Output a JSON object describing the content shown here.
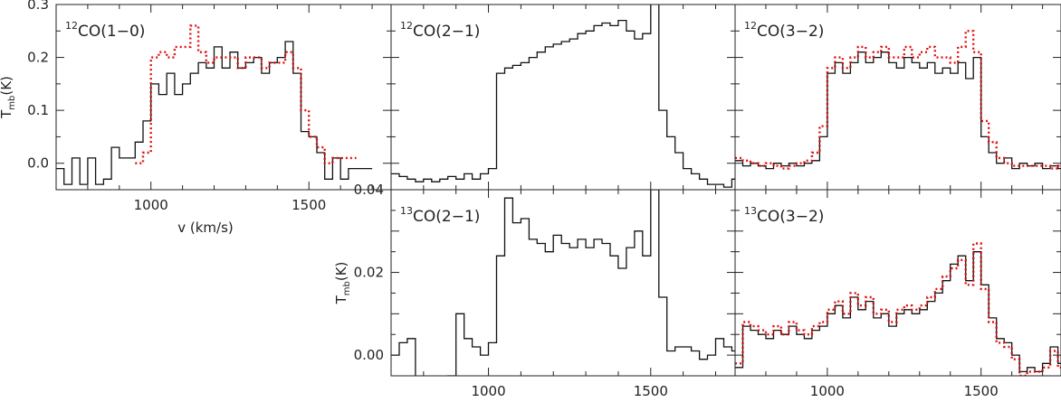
{
  "chart_data": [
    {
      "id": "p1",
      "type": "line",
      "step": true,
      "label_iso": "12",
      "label_rest": "CO(1−0)",
      "ylabel_main": "T",
      "ylabel_sub": "mb",
      "ylabel_unit": "(K)",
      "xlabel": "v (km/s)",
      "xlim": [
        700,
        1760
      ],
      "ylim": [
        -0.05,
        0.3
      ],
      "xticks": [
        {
          "v": 1000,
          "label": "1000"
        },
        {
          "v": 1500,
          "label": "1500"
        }
      ],
      "yticks": [
        {
          "v": 0.0,
          "label": "0.0"
        },
        {
          "v": 0.1,
          "label": "0.1"
        },
        {
          "v": 0.2,
          "label": "0.2"
        },
        {
          "v": 0.3,
          "label": "0.3"
        }
      ],
      "series": [
        {
          "style": "solid",
          "x": [
            700,
            725,
            750,
            775,
            800,
            825,
            850,
            875,
            900,
            925,
            950,
            975,
            1000,
            1025,
            1050,
            1075,
            1100,
            1125,
            1150,
            1175,
            1200,
            1225,
            1250,
            1275,
            1300,
            1325,
            1350,
            1375,
            1400,
            1425,
            1450,
            1475,
            1500,
            1525,
            1550,
            1575,
            1600,
            1625,
            1650,
            1675
          ],
          "y": [
            -0.01,
            -0.04,
            0.01,
            -0.04,
            0.01,
            -0.04,
            -0.03,
            0.03,
            0.01,
            0.01,
            0.04,
            0.08,
            0.15,
            0.13,
            0.17,
            0.13,
            0.15,
            0.17,
            0.19,
            0.18,
            0.22,
            0.18,
            0.21,
            0.18,
            0.19,
            0.2,
            0.17,
            0.19,
            0.2,
            0.23,
            0.17,
            0.06,
            0.05,
            0.02,
            -0.03,
            0.01,
            -0.03,
            -0.01,
            -0.01,
            -0.01
          ]
        },
        {
          "style": "dotted",
          "x": [
            950,
            975,
            1000,
            1025,
            1050,
            1075,
            1100,
            1125,
            1150,
            1175,
            1200,
            1225,
            1250,
            1275,
            1300,
            1325,
            1350,
            1375,
            1400,
            1425,
            1450,
            1475,
            1500,
            1525,
            1550,
            1575,
            1600,
            1625
          ],
          "y": [
            0.0,
            0.02,
            0.2,
            0.21,
            0.2,
            0.22,
            0.22,
            0.26,
            0.21,
            0.19,
            0.2,
            0.2,
            0.2,
            0.18,
            0.2,
            0.2,
            0.18,
            0.19,
            0.19,
            0.21,
            0.18,
            0.1,
            0.05,
            0.03,
            0.0,
            0.01,
            0.01,
            0.01
          ]
        }
      ]
    },
    {
      "id": "p2",
      "type": "line",
      "step": true,
      "label_iso": "12",
      "label_rest": "CO(2−1)",
      "xlim": [
        700,
        1760
      ],
      "ylim": [
        -0.05,
        0.3
      ],
      "series": [
        {
          "style": "solid",
          "x": [
            700,
            725,
            750,
            775,
            800,
            825,
            850,
            875,
            900,
            925,
            950,
            975,
            1000,
            1025,
            1050,
            1075,
            1100,
            1125,
            1150,
            1175,
            1200,
            1225,
            1250,
            1275,
            1300,
            1325,
            1350,
            1375,
            1400,
            1425,
            1450,
            1475,
            1500,
            1525,
            1550,
            1575,
            1600,
            1625,
            1650,
            1675,
            1700,
            1725,
            1750
          ],
          "y": [
            -0.02,
            -0.025,
            -0.03,
            -0.035,
            -0.03,
            -0.035,
            -0.03,
            -0.025,
            -0.03,
            -0.02,
            -0.03,
            -0.02,
            -0.01,
            0.17,
            0.18,
            0.185,
            0.19,
            0.2,
            0.21,
            0.22,
            0.225,
            0.23,
            0.235,
            0.245,
            0.25,
            0.26,
            0.265,
            0.26,
            0.27,
            0.25,
            0.235,
            0.245,
            0.35,
            0.1,
            0.05,
            0.02,
            -0.01,
            -0.02,
            -0.03,
            -0.04,
            -0.04,
            -0.045,
            -0.03
          ]
        }
      ]
    },
    {
      "id": "p3",
      "type": "line",
      "step": true,
      "label_iso": "12",
      "label_rest": "CO(3−2)",
      "xlim": [
        700,
        1760
      ],
      "ylim": [
        -0.05,
        0.3
      ],
      "series": [
        {
          "style": "solid",
          "x": [
            700,
            725,
            750,
            775,
            800,
            825,
            850,
            875,
            900,
            925,
            950,
            975,
            1000,
            1025,
            1050,
            1075,
            1100,
            1125,
            1150,
            1175,
            1200,
            1225,
            1250,
            1275,
            1300,
            1325,
            1350,
            1375,
            1400,
            1425,
            1450,
            1475,
            1500,
            1525,
            1550,
            1575,
            1600,
            1625,
            1650,
            1675,
            1700,
            1725,
            1750
          ],
          "y": [
            0.005,
            -0.005,
            0.0,
            -0.005,
            -0.01,
            0.0,
            -0.005,
            0.0,
            -0.005,
            0.0,
            0.005,
            0.05,
            0.17,
            0.19,
            0.17,
            0.19,
            0.21,
            0.19,
            0.2,
            0.21,
            0.19,
            0.18,
            0.2,
            0.19,
            0.18,
            0.19,
            0.17,
            0.18,
            0.17,
            0.19,
            0.16,
            0.2,
            0.05,
            0.02,
            0.0,
            0.01,
            -0.01,
            0.0,
            -0.005,
            0.0,
            -0.01,
            -0.005,
            -0.01
          ]
        },
        {
          "style": "dotted",
          "x": [
            700,
            725,
            750,
            775,
            800,
            825,
            850,
            875,
            900,
            925,
            950,
            975,
            1000,
            1025,
            1050,
            1075,
            1100,
            1125,
            1150,
            1175,
            1200,
            1225,
            1250,
            1275,
            1300,
            1325,
            1350,
            1375,
            1400,
            1425,
            1450,
            1475,
            1500,
            1525,
            1550,
            1575,
            1600,
            1625,
            1650,
            1675,
            1700,
            1725,
            1750
          ],
          "y": [
            0.01,
            0.005,
            0.0,
            -0.005,
            0.0,
            -0.005,
            -0.01,
            -0.005,
            0.0,
            0.005,
            0.02,
            0.07,
            0.18,
            0.2,
            0.18,
            0.2,
            0.22,
            0.2,
            0.21,
            0.22,
            0.2,
            0.2,
            0.22,
            0.2,
            0.21,
            0.22,
            0.2,
            0.2,
            0.19,
            0.22,
            0.25,
            0.21,
            0.08,
            0.04,
            0.01,
            0.0,
            -0.005,
            -0.005,
            -0.005,
            -0.005,
            -0.005,
            -0.01,
            -0.005
          ]
        }
      ]
    },
    {
      "id": "p5",
      "type": "line",
      "step": true,
      "label_iso": "13",
      "label_rest": "CO(2−1)",
      "ylabel_main": "T",
      "ylabel_sub": "mb",
      "ylabel_unit": "(K)",
      "xlim": [
        700,
        1760
      ],
      "ylim": [
        -0.005,
        0.04
      ],
      "xticks": [
        {
          "v": 1000,
          "label": "1000"
        },
        {
          "v": 1500,
          "label": "1500"
        }
      ],
      "yticks": [
        {
          "v": 0.0,
          "label": "0.00"
        },
        {
          "v": 0.02,
          "label": "0.02"
        },
        {
          "v": 0.04,
          "label": "0.04"
        }
      ],
      "series": [
        {
          "style": "solid",
          "x": [
            700,
            725,
            750,
            775,
            800,
            825,
            850,
            875,
            900,
            925,
            950,
            975,
            1000,
            1025,
            1050,
            1075,
            1100,
            1125,
            1150,
            1175,
            1200,
            1225,
            1250,
            1275,
            1300,
            1325,
            1350,
            1375,
            1400,
            1425,
            1450,
            1475,
            1500,
            1525,
            1550,
            1575,
            1600,
            1625,
            1650,
            1675,
            1700,
            1725,
            1750
          ],
          "y": [
            0.0,
            0.003,
            0.004,
            -0.008,
            -0.01,
            -0.008,
            -0.012,
            -0.005,
            0.01,
            0.004,
            0.002,
            0.0,
            0.003,
            0.024,
            0.038,
            0.032,
            0.033,
            0.028,
            0.027,
            0.025,
            0.029,
            0.027,
            0.026,
            0.028,
            0.026,
            0.028,
            0.027,
            0.024,
            0.021,
            0.026,
            0.03,
            0.024,
            0.04,
            0.014,
            0.001,
            0.002,
            0.002,
            0.001,
            -0.001,
            0.0,
            0.004,
            0.002,
            0.001
          ]
        }
      ]
    },
    {
      "id": "p6",
      "type": "line",
      "step": true,
      "label_iso": "13",
      "label_rest": "CO(3−2)",
      "xlim": [
        700,
        1760
      ],
      "xticks": [
        {
          "v": 1000,
          "label": "1000"
        },
        {
          "v": 1500,
          "label": "1500"
        }
      ],
      "ylim": [
        -0.005,
        0.04
      ],
      "series": [
        {
          "style": "solid",
          "x": [
            700,
            725,
            750,
            775,
            800,
            825,
            850,
            875,
            900,
            925,
            950,
            975,
            1000,
            1025,
            1050,
            1075,
            1100,
            1125,
            1150,
            1175,
            1200,
            1225,
            1250,
            1275,
            1300,
            1325,
            1350,
            1375,
            1400,
            1425,
            1450,
            1475,
            1500,
            1525,
            1550,
            1575,
            1600,
            1625,
            1650,
            1675,
            1700,
            1725,
            1750
          ],
          "y": [
            -0.003,
            0.007,
            0.006,
            0.005,
            0.004,
            0.006,
            0.005,
            0.007,
            0.005,
            0.004,
            0.006,
            0.007,
            0.01,
            0.012,
            0.009,
            0.014,
            0.011,
            0.013,
            0.009,
            0.01,
            0.007,
            0.01,
            0.011,
            0.01,
            0.011,
            0.013,
            0.015,
            0.018,
            0.022,
            0.024,
            0.018,
            0.025,
            0.017,
            0.009,
            0.004,
            0.003,
            0.0,
            -0.004,
            -0.003,
            -0.004,
            -0.002,
            0.002,
            -0.002
          ]
        },
        {
          "style": "dotted",
          "x": [
            700,
            725,
            750,
            775,
            800,
            825,
            850,
            875,
            900,
            925,
            950,
            975,
            1000,
            1025,
            1050,
            1075,
            1100,
            1125,
            1150,
            1175,
            1200,
            1225,
            1250,
            1275,
            1300,
            1325,
            1350,
            1375,
            1400,
            1425,
            1450,
            1475,
            1500,
            1525,
            1550,
            1575,
            1600,
            1625,
            1650,
            1675,
            1700,
            1725,
            1750
          ],
          "y": [
            -0.002,
            0.008,
            0.007,
            0.006,
            0.005,
            0.007,
            0.005,
            0.008,
            0.006,
            0.005,
            0.007,
            0.008,
            0.011,
            0.013,
            0.01,
            0.015,
            0.012,
            0.014,
            0.01,
            0.011,
            0.008,
            0.011,
            0.012,
            0.011,
            0.012,
            0.014,
            0.016,
            0.019,
            0.021,
            0.023,
            0.017,
            0.027,
            0.016,
            0.008,
            0.003,
            0.002,
            -0.001,
            -0.005,
            -0.004,
            -0.004,
            -0.003,
            0.001,
            -0.003
          ]
        }
      ]
    }
  ],
  "colors": {
    "frame": "#222222",
    "solid_series": "#111111",
    "dotted_series": "#e01010"
  }
}
